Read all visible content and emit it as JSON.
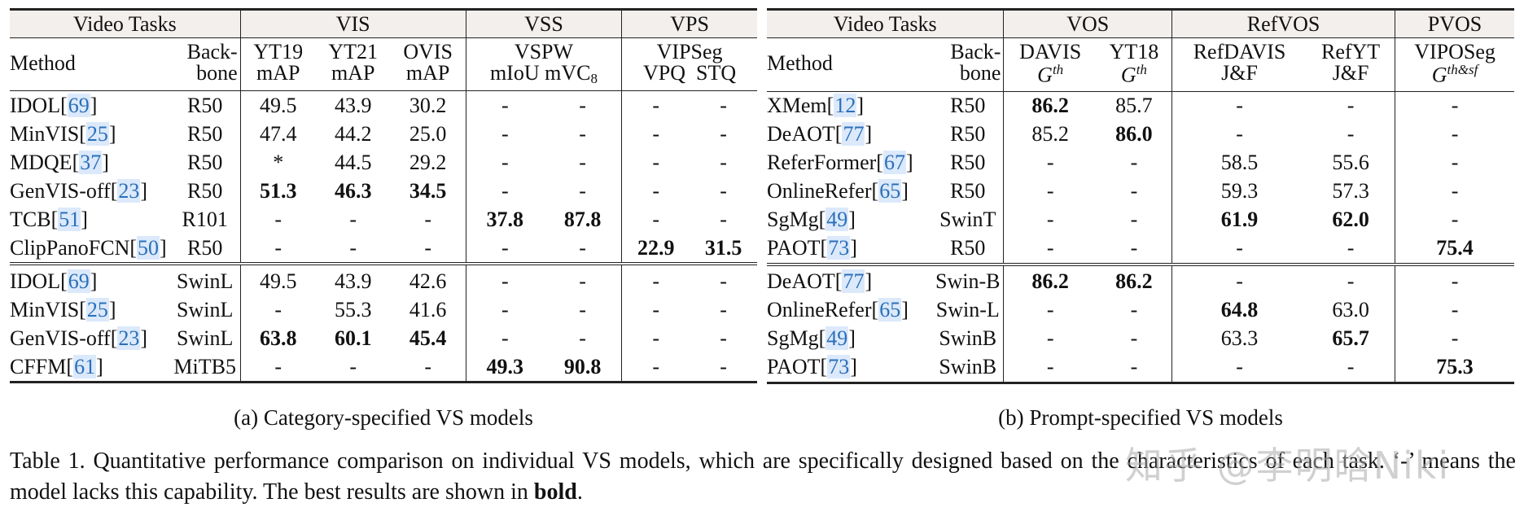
{
  "table_a": {
    "caption": "(a) Category-specified VS models",
    "group_header": {
      "video_tasks": "Video Tasks",
      "groups": [
        "VIS",
        "VSS",
        "VPS"
      ]
    },
    "sub_header": {
      "method": "Method",
      "backbone_line1": "Back-",
      "backbone_line2": "bone",
      "vis_cols": [
        {
          "dataset": "YT19",
          "metric": "mAP"
        },
        {
          "dataset": "YT21",
          "metric": "mAP"
        },
        {
          "dataset": "OVIS",
          "metric": "mAP"
        }
      ],
      "vss_dataset": "VSPW",
      "vss_metrics": [
        "mIoU",
        "mVC",
        "8"
      ],
      "vps_dataset": "VIPSeg",
      "vps_metrics": [
        "VPQ",
        "STQ"
      ]
    },
    "rows": [
      {
        "method": "IDOL",
        "cite": "69",
        "backbone": "R50",
        "values": [
          "49.5",
          "43.9",
          "30.2",
          "-",
          "-",
          "-",
          "-"
        ],
        "bold": []
      },
      {
        "method": "MinVIS",
        "cite": "25",
        "backbone": "R50",
        "values": [
          "47.4",
          "44.2",
          "25.0",
          "-",
          "-",
          "-",
          "-"
        ],
        "bold": []
      },
      {
        "method": "MDQE",
        "cite": "37",
        "backbone": "R50",
        "values": [
          "*",
          "44.5",
          "29.2",
          "-",
          "-",
          "-",
          "-"
        ],
        "bold": []
      },
      {
        "method": "GenVIS-off",
        "cite": "23",
        "backbone": "R50",
        "values": [
          "51.3",
          "46.3",
          "34.5",
          "-",
          "-",
          "-",
          "-"
        ],
        "bold": [
          0,
          1,
          2
        ]
      },
      {
        "method": "TCB",
        "cite": "51",
        "backbone": "R101",
        "values": [
          "-",
          "-",
          "-",
          "37.8",
          "87.8",
          "-",
          "-"
        ],
        "bold": [
          3,
          4
        ]
      },
      {
        "method": "ClipPanoFCN",
        "cite": "50",
        "backbone": "R50",
        "values": [
          "-",
          "-",
          "-",
          "-",
          "-",
          "22.9",
          "31.5"
        ],
        "bold": [
          5,
          6
        ]
      },
      {
        "method": "IDOL",
        "cite": "69",
        "backbone": "SwinL",
        "values": [
          "49.5",
          "43.9",
          "42.6",
          "-",
          "-",
          "-",
          "-"
        ],
        "bold": []
      },
      {
        "method": "MinVIS",
        "cite": "25",
        "backbone": "SwinL",
        "values": [
          "-",
          "55.3",
          "41.6",
          "-",
          "-",
          "-",
          "-"
        ],
        "bold": []
      },
      {
        "method": "GenVIS-off",
        "cite": "23",
        "backbone": "SwinL",
        "values": [
          "63.8",
          "60.1",
          "45.4",
          "-",
          "-",
          "-",
          "-"
        ],
        "bold": [
          0,
          1,
          2
        ]
      },
      {
        "method": "CFFM",
        "cite": "61",
        "backbone": "MiTB5",
        "values": [
          "-",
          "-",
          "-",
          "49.3",
          "90.8",
          "-",
          "-"
        ],
        "bold": [
          3,
          4
        ]
      }
    ]
  },
  "table_b": {
    "caption": "(b) Prompt-specified VS models",
    "group_header": {
      "video_tasks": "Video Tasks",
      "groups": [
        "VOS",
        "RefVOS",
        "PVOS"
      ]
    },
    "sub_header": {
      "method": "Method",
      "backbone_line1": "Back-",
      "backbone_line2": "bone",
      "vos_cols": [
        {
          "dataset": "DAVIS",
          "metric_base": "G",
          "metric_sup": "th"
        },
        {
          "dataset": "YT18",
          "metric_base": "G",
          "metric_sup": "th"
        }
      ],
      "refvos_cols": [
        {
          "dataset": "RefDAVIS",
          "metric": "J&F"
        },
        {
          "dataset": "RefYT",
          "metric": "J&F"
        }
      ],
      "pvos_col": {
        "dataset": "VIPOSeg",
        "metric_base": "G",
        "metric_sup": "th&sf"
      }
    },
    "rows": [
      {
        "method": "XMem",
        "cite": "12",
        "backbone": "R50",
        "values": [
          "86.2",
          "85.7",
          "-",
          "-",
          "-"
        ],
        "bold": [
          0
        ]
      },
      {
        "method": "DeAOT",
        "cite": "77",
        "backbone": "R50",
        "values": [
          "85.2",
          "86.0",
          "-",
          "-",
          "-"
        ],
        "bold": [
          1
        ]
      },
      {
        "method": "ReferFormer",
        "cite": "67",
        "backbone": "R50",
        "values": [
          "-",
          "-",
          "58.5",
          "55.6",
          "-"
        ],
        "bold": []
      },
      {
        "method": "OnlineRefer",
        "cite": "65",
        "backbone": "R50",
        "values": [
          "-",
          "-",
          "59.3",
          "57.3",
          "-"
        ],
        "bold": []
      },
      {
        "method": "SgMg",
        "cite": "49",
        "backbone": "SwinT",
        "values": [
          "-",
          "-",
          "61.9",
          "62.0",
          "-"
        ],
        "bold": [
          2,
          3
        ]
      },
      {
        "method": "PAOT",
        "cite": "73",
        "backbone": "R50",
        "values": [
          "-",
          "-",
          "-",
          "-",
          "75.4"
        ],
        "bold": [
          4
        ]
      },
      {
        "method": "DeAOT",
        "cite": "77",
        "backbone": "Swin-B",
        "values": [
          "86.2",
          "86.2",
          "-",
          "-",
          "-"
        ],
        "bold": [
          0,
          1
        ]
      },
      {
        "method": "OnlineRefer",
        "cite": "65",
        "backbone": "Swin-L",
        "values": [
          "-",
          "-",
          "64.8",
          "63.0",
          "-"
        ],
        "bold": [
          2
        ]
      },
      {
        "method": "SgMg",
        "cite": "49",
        "backbone": "SwinB",
        "values": [
          "-",
          "-",
          "63.3",
          "65.7",
          "-"
        ],
        "bold": [
          3
        ]
      },
      {
        "method": "PAOT",
        "cite": "73",
        "backbone": "SwinB",
        "values": [
          "-",
          "-",
          "-",
          "-",
          "75.3"
        ],
        "bold": [
          4
        ]
      }
    ]
  },
  "caption": {
    "prefix": "Table 1.  Quantitative performance comparison on individual VS models, which are specifically designed based on the characteristics of each task. ‘-’ means the model lacks this capability. The best results are shown in ",
    "bold_word": "bold",
    "suffix": "."
  },
  "watermark": "知乎 @李明晗Niki",
  "colors": {
    "header_bg": "#f3efed",
    "cite_text": "#2b6fb8",
    "cite_bg": "#dbe9fb"
  }
}
